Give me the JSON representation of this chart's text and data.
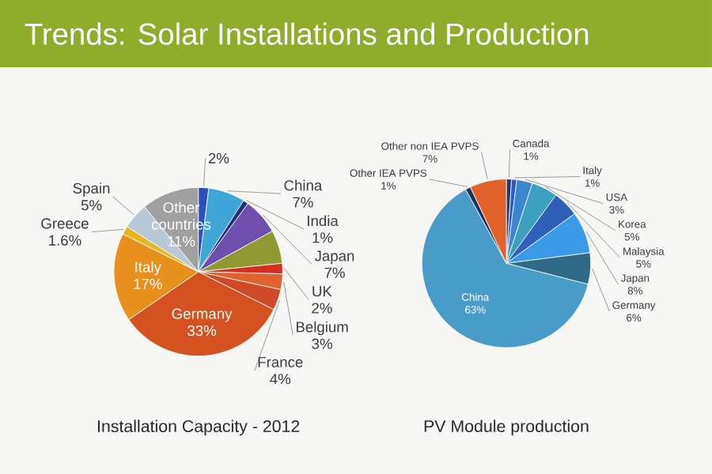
{
  "chart_data": [
    {
      "type": "pie",
      "title": "Installation Capacity - 2012",
      "annotations": [
        "Trends: Solar Installations and Production"
      ],
      "categories": [
        null,
        "China",
        "India",
        "Japan",
        null,
        "UK",
        "Belgium",
        "France",
        "Germany",
        "Italy",
        "Greece",
        "Spain",
        "Other countries"
      ],
      "values": [
        2,
        7,
        1,
        7,
        6.4,
        2,
        3,
        4,
        33,
        17,
        1.6,
        5,
        11
      ],
      "value_labels": [
        "2%",
        "7%",
        "1%",
        "7%",
        null,
        "2%",
        "3%",
        "4%",
        "33%",
        "17%",
        "1.6%",
        "5%",
        "11%"
      ],
      "colors": [
        "#2f4fc0",
        "#3fa6d6",
        "#22307a",
        "#6f4fae",
        "#8f9a32",
        "#d42e22",
        "#e0622e",
        "#cf4a28",
        "#d45220",
        "#e8901e",
        "#e6b820",
        "#b8c8d6",
        "#a0a0a0"
      ]
    },
    {
      "type": "pie",
      "title": "PV Module production",
      "categories": [
        "Canada",
        "Italy",
        "USA",
        "Korea",
        "Malaysia",
        "Japan",
        "Germany",
        "China",
        "Other IEA PVPS",
        "Other non IEA PVPS"
      ],
      "values": [
        1,
        1,
        3,
        5,
        5,
        8,
        6,
        63,
        1,
        7
      ],
      "value_labels": [
        "1%",
        "1%",
        "3%",
        "5%",
        "5%",
        "8%",
        "6%",
        "63%",
        "1%",
        "7%"
      ],
      "colors": [
        "#1f3a78",
        "#2a5cc8",
        "#3c86d0",
        "#3ea0c0",
        "#2f5fb8",
        "#3a9ae8",
        "#2f6a88",
        "#4a9cc8",
        "#1c3560",
        "#e0622a"
      ]
    }
  ]
}
